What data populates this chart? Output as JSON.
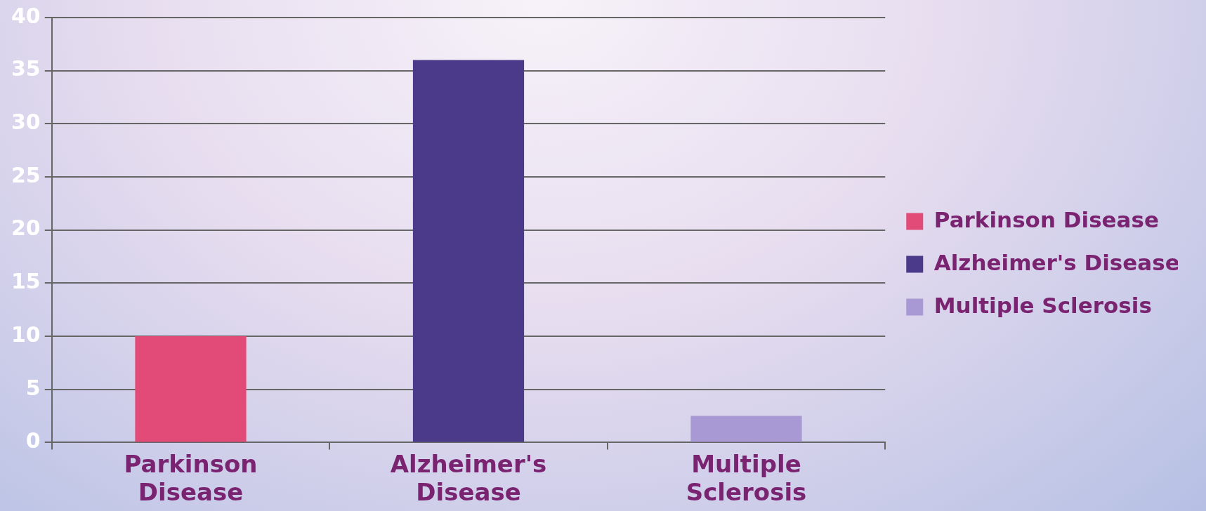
{
  "chart_data": {
    "type": "bar",
    "categories": [
      "Parkinson Disease",
      "Alzheimer's Disease",
      "Multiple Sclerosis"
    ],
    "series": [
      {
        "name": "Parkinson Disease",
        "color": "#e24b78",
        "values": [
          10,
          null,
          null
        ]
      },
      {
        "name": "Alzheimer's Disease",
        "color": "#4b3a8a",
        "values": [
          null,
          36,
          null
        ]
      },
      {
        "name": "Multiple Sclerosis",
        "color": "#a898d4",
        "values": [
          null,
          null,
          2.5
        ]
      }
    ],
    "ylim": [
      0,
      40
    ],
    "yticks": [
      0,
      5,
      10,
      15,
      20,
      25,
      30,
      35,
      40
    ],
    "grid": "y",
    "legend": "right"
  }
}
